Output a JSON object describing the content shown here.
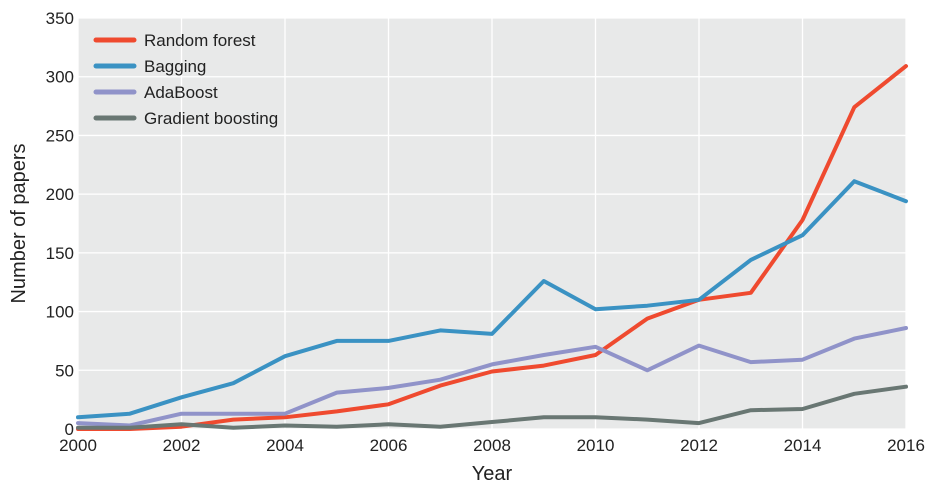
{
  "chart_data": {
    "type": "line",
    "xlabel": "Year",
    "ylabel": "Number of papers",
    "x": [
      2000,
      2001,
      2002,
      2003,
      2004,
      2005,
      2006,
      2007,
      2008,
      2009,
      2010,
      2011,
      2012,
      2013,
      2014,
      2015,
      2016
    ],
    "xlim": [
      2000,
      2016
    ],
    "ylim": [
      0,
      350
    ],
    "x_ticks": [
      "2000",
      "2002",
      "2004",
      "2006",
      "2008",
      "2010",
      "2012",
      "2014",
      "2016"
    ],
    "y_ticks": [
      "0",
      "50",
      "100",
      "150",
      "200",
      "250",
      "300",
      "350"
    ],
    "grid": true,
    "legend_position": "top-left",
    "background_color": "#e8e9e9",
    "grid_color": "#ffffff",
    "series": [
      {
        "name": "Random forest",
        "color": "#ef4a2f",
        "values": [
          0,
          0,
          2,
          8,
          10,
          15,
          21,
          37,
          49,
          54,
          63,
          94,
          110,
          116,
          178,
          274,
          309
        ]
      },
      {
        "name": "Bagging",
        "color": "#3a92c3",
        "values": [
          10,
          13,
          27,
          39,
          62,
          75,
          75,
          84,
          81,
          126,
          102,
          105,
          110,
          144,
          165,
          211,
          194
        ]
      },
      {
        "name": "AdaBoost",
        "color": "#9093c9",
        "values": [
          5,
          3,
          13,
          13,
          13,
          31,
          35,
          42,
          55,
          63,
          70,
          50,
          71,
          57,
          59,
          77,
          86
        ]
      },
      {
        "name": "Gradient boosting",
        "color": "#697773",
        "values": [
          1,
          1,
          4,
          1,
          3,
          2,
          4,
          2,
          6,
          10,
          10,
          8,
          5,
          16,
          17,
          30,
          36
        ]
      }
    ]
  }
}
